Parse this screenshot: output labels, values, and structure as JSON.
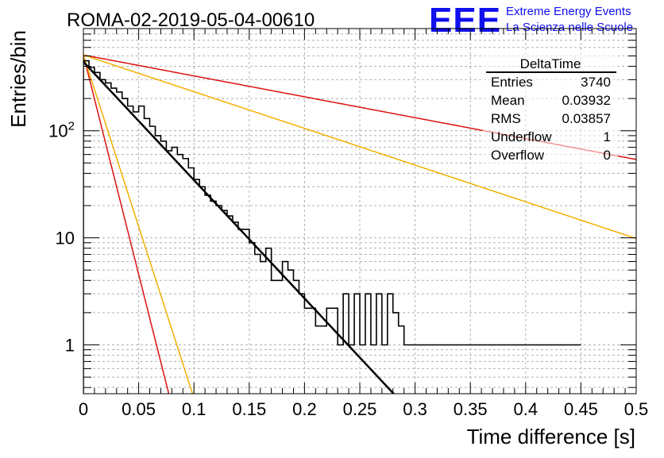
{
  "header": {
    "title": "ROMA-02-2019-05-04-00610",
    "logo_text": "EEE",
    "logo_line1": "Extreme Energy Events",
    "logo_line2": "La Scienza nelle Scuole",
    "logo_color": "#1010ee"
  },
  "stats": {
    "title": "DeltaTime",
    "rows": [
      {
        "label": "Entries",
        "value": "3740"
      },
      {
        "label": "Mean",
        "value": "0.03932"
      },
      {
        "label": "RMS",
        "value": "0.03857"
      },
      {
        "label": "Underflow",
        "value": "1"
      },
      {
        "label": "Overflow",
        "value": "0"
      }
    ]
  },
  "chart_data": {
    "type": "line",
    "title": "ROMA-02-2019-05-04-00610",
    "xlabel": "Time difference [s]",
    "ylabel": "Entries/bin",
    "xlim": [
      0,
      0.5
    ],
    "ylim": [
      0.35,
      900
    ],
    "yscale": "log",
    "grid": true,
    "x_ticks": [
      "0",
      "0.05",
      "0.1",
      "0.15",
      "0.2",
      "0.25",
      "0.3",
      "0.35",
      "0.4",
      "0.45",
      "0.5"
    ],
    "y_ticks": [
      {
        "value": 1,
        "label": "1"
      },
      {
        "value": 10,
        "label": "10"
      },
      {
        "value": 100,
        "label": "10",
        "sup": "2"
      }
    ],
    "histogram": {
      "bin_width": 0.005,
      "counts": [
        450,
        390,
        350,
        300,
        280,
        250,
        230,
        200,
        170,
        150,
        170,
        130,
        110,
        90,
        80,
        65,
        70,
        60,
        55,
        45,
        35,
        30,
        25,
        22,
        20,
        18,
        16,
        14,
        12,
        12,
        9,
        7,
        6,
        8,
        4,
        4,
        6,
        5,
        4,
        3,
        2.2,
        2.2,
        1.5,
        1.5,
        2.2,
        2.2,
        1.0,
        3.0,
        1.0,
        3.0,
        1.0,
        3.0,
        1.0,
        3.0,
        1.0,
        3.0,
        2.0,
        1.5,
        1.0,
        1.0,
        1.0,
        1.0,
        1.0,
        1.0,
        1.0,
        1.0,
        1.0,
        1.0,
        1.0,
        1.0,
        1.0,
        1.0,
        1.0,
        1.0,
        1.0,
        1.0,
        1.0,
        1.0,
        1.0,
        1.0,
        1.0,
        1.0,
        1.0,
        1.0,
        1.0,
        1.0,
        1.0,
        1.0,
        1.0,
        1.0
      ],
      "color": "#000000"
    },
    "series": [
      {
        "kind": "fit",
        "A": 440,
        "tau": 0.03932,
        "color": "#000000",
        "width": 2.5
      },
      {
        "kind": "bound",
        "A": 510,
        "tau": 0.2225,
        "color": "#dd1111",
        "width": 1.5
      },
      {
        "kind": "bound",
        "A": 510,
        "tau": 0.1267,
        "color": "#f0b000",
        "width": 1.5
      },
      {
        "kind": "bound",
        "A": 510,
        "tau": 0.0106,
        "color": "#dd1111",
        "width": 1.5
      },
      {
        "kind": "bound",
        "A": 510,
        "tau": 0.01355,
        "color": "#f0b000",
        "width": 1.5
      }
    ]
  }
}
